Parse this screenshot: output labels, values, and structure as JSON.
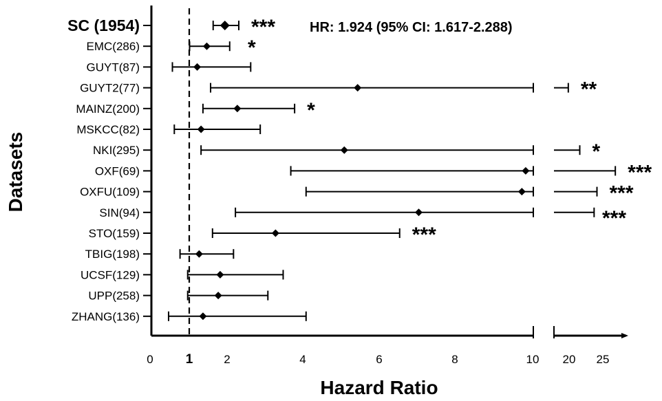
{
  "chart_data": {
    "type": "forest",
    "xlabel": "Hazard Ratio",
    "ylabel": "Datasets",
    "reference_line": 1,
    "x_segments": [
      {
        "range": [
          0,
          10
        ],
        "ticks": [
          "0",
          "1",
          "2",
          "4",
          "6",
          "8",
          "10"
        ]
      },
      {
        "range": [
          15,
          27
        ],
        "ticks": [
          "20",
          "25"
        ]
      }
    ],
    "summary_annotation": "HR: 1.924 (95% CI: 1.617-2.288)",
    "rows": [
      {
        "label": "SC (1954)",
        "hr": 1.924,
        "lo": 1.617,
        "hi": 2.288,
        "sig": "***",
        "bold": true
      },
      {
        "label": "EMC(286)",
        "hr": 1.45,
        "lo": 1.0,
        "hi": 2.05,
        "sig": "*"
      },
      {
        "label": "GUYT(87)",
        "hr": 1.2,
        "lo": 0.55,
        "hi": 2.6,
        "sig": ""
      },
      {
        "label": "GUYT2(77)",
        "hr": 5.4,
        "lo": 1.55,
        "hi": 17.5,
        "sig": "**"
      },
      {
        "label": "MAINZ(200)",
        "hr": 2.25,
        "lo": 1.35,
        "hi": 3.75,
        "sig": "*"
      },
      {
        "label": "MSKCC(82)",
        "hr": 1.3,
        "lo": 0.6,
        "hi": 2.85,
        "sig": ""
      },
      {
        "label": "NKI(295)",
        "hr": 5.05,
        "lo": 1.3,
        "hi": 19.5,
        "sig": "*"
      },
      {
        "label": "OXF(69)",
        "hr": 9.8,
        "lo": 3.65,
        "hi": 25.7,
        "sig": "***"
      },
      {
        "label": "OXFU(109)",
        "hr": 9.7,
        "lo": 4.05,
        "hi": 22.5,
        "sig": "***"
      },
      {
        "label": "SIN(94)",
        "hr": 7.0,
        "lo": 2.2,
        "hi": 22.0,
        "sig": "***"
      },
      {
        "label": "STO(159)",
        "hr": 3.25,
        "lo": 1.6,
        "hi": 6.5,
        "sig": "***"
      },
      {
        "label": "TBIG(198)",
        "hr": 1.25,
        "lo": 0.75,
        "hi": 2.15,
        "sig": ""
      },
      {
        "label": "UCSF(129)",
        "hr": 1.8,
        "lo": 0.95,
        "hi": 3.45,
        "sig": ""
      },
      {
        "label": "UPP(258)",
        "hr": 1.75,
        "lo": 0.95,
        "hi": 3.05,
        "sig": ""
      },
      {
        "label": "ZHANG(136)",
        "hr": 1.35,
        "lo": 0.45,
        "hi": 4.05,
        "sig": ""
      }
    ]
  }
}
